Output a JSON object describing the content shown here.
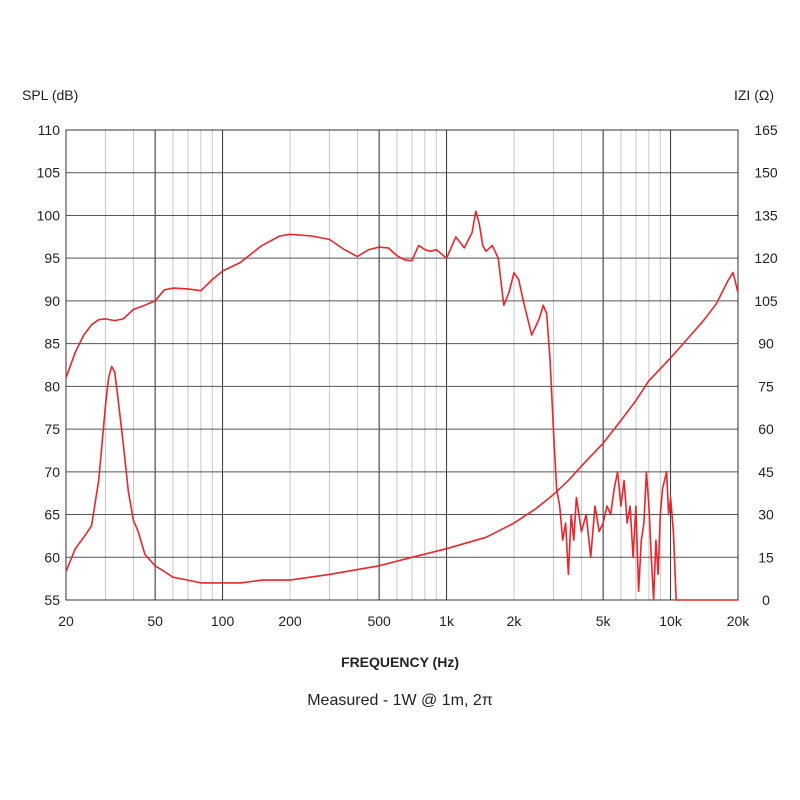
{
  "chart_data": {
    "type": "line",
    "title": "",
    "subtitle": "Measured - 1W @ 1m, 2π",
    "xlabel": "FREQUENCY (Hz)",
    "ylabel_left": "SPL (dB)",
    "ylabel_right": "IZI (Ω)",
    "x_scale": "log",
    "xlim": [
      20,
      20000
    ],
    "ylim_left": [
      55,
      110
    ],
    "ylim_right": [
      0,
      165
    ],
    "grid": true,
    "x_ticks": [
      {
        "value": 20,
        "label": "20"
      },
      {
        "value": 50,
        "label": "50"
      },
      {
        "value": 100,
        "label": "100"
      },
      {
        "value": 200,
        "label": "200"
      },
      {
        "value": 500,
        "label": "500"
      },
      {
        "value": 1000,
        "label": "1k"
      },
      {
        "value": 2000,
        "label": "2k"
      },
      {
        "value": 5000,
        "label": "5k"
      },
      {
        "value": 10000,
        "label": "10k"
      },
      {
        "value": 20000,
        "label": "20k"
      }
    ],
    "y_ticks_left": [
      "55",
      "60",
      "65",
      "70",
      "75",
      "80",
      "85",
      "90",
      "95",
      "100",
      "105",
      "110"
    ],
    "y_ticks_right": [
      "0",
      "15",
      "30",
      "45",
      "60",
      "75",
      "90",
      "105",
      "120",
      "135",
      "150",
      "165"
    ],
    "line_color": "#e8262b",
    "series": [
      {
        "axis": "left",
        "x": [
          20,
          22,
          24,
          26,
          28,
          30,
          33,
          36,
          40,
          45,
          50,
          55,
          60,
          70,
          80,
          90,
          100,
          120,
          150,
          180,
          200,
          250,
          300,
          350,
          400,
          450,
          500,
          550,
          600,
          650,
          700,
          750,
          800,
          850,
          900,
          1000,
          1100,
          1200,
          1300,
          1350,
          1400,
          1450,
          1500,
          1600,
          1700,
          1800,
          1900,
          2000,
          2100,
          2200,
          2400,
          2600,
          2700,
          2800,
          2900,
          3000,
          3100,
          3200,
          3300,
          3400,
          3500,
          3600,
          3700,
          3800,
          4000,
          4200,
          4400,
          4600,
          4800,
          5000,
          5200,
          5400,
          5600,
          5800,
          6000,
          6200,
          6400,
          6600,
          6800,
          7000,
          7200,
          7400,
          7600,
          7800,
          8000,
          8200,
          8400,
          8600,
          8800,
          9000,
          9200,
          9400,
          9600,
          9800,
          10000,
          10300,
          10600,
          11000,
          12000,
          14000,
          16000,
          18000,
          20000
        ],
        "y": [
          81,
          84,
          86,
          87.2,
          87.8,
          87.9,
          87.7,
          87.9,
          89,
          89.5,
          90,
          91.3,
          91.5,
          91.4,
          91.2,
          92.5,
          93.5,
          94.5,
          96.5,
          97.6,
          97.8,
          97.6,
          97.2,
          96,
          95.2,
          96,
          96.3,
          96.2,
          95.3,
          94.8,
          94.7,
          96.5,
          96,
          95.8,
          96,
          95,
          97.5,
          96.2,
          98,
          100.5,
          99,
          96.5,
          95.8,
          96.5,
          95,
          89.5,
          91,
          93.3,
          92.5,
          90,
          86,
          88,
          89.5,
          88.5,
          83,
          75,
          68,
          66,
          62,
          64,
          58,
          65,
          62,
          67,
          63,
          65,
          60,
          66,
          63,
          64,
          66,
          65,
          68,
          70,
          66,
          69,
          64,
          66,
          60,
          66,
          56,
          62,
          64,
          70,
          66,
          60,
          55,
          62,
          58,
          65,
          68,
          69,
          70,
          65,
          67,
          63,
          55,
          55,
          55,
          55,
          55,
          55,
          55
        ]
      },
      {
        "axis": "right",
        "x": [
          20,
          22,
          24,
          26,
          28,
          30,
          31,
          32,
          33,
          34,
          36,
          38,
          40,
          42,
          45,
          50,
          55,
          60,
          70,
          80,
          90,
          100,
          120,
          150,
          200,
          300,
          500,
          700,
          1000,
          1500,
          2000,
          2500,
          3000,
          3500,
          4000,
          5000,
          6000,
          7000,
          8000,
          10000,
          12000,
          14000,
          16000,
          18000,
          19000,
          20000
        ],
        "y": [
          10,
          18,
          22,
          26,
          42,
          68,
          78,
          82,
          80,
          72,
          55,
          38,
          28,
          24,
          16,
          12,
          10,
          8,
          7,
          6,
          6,
          6,
          6,
          7,
          7,
          9,
          12,
          15,
          18,
          22,
          27,
          32,
          37,
          42,
          47,
          55,
          63,
          70,
          77,
          85,
          92,
          98,
          104,
          112,
          115,
          108
        ]
      }
    ]
  }
}
